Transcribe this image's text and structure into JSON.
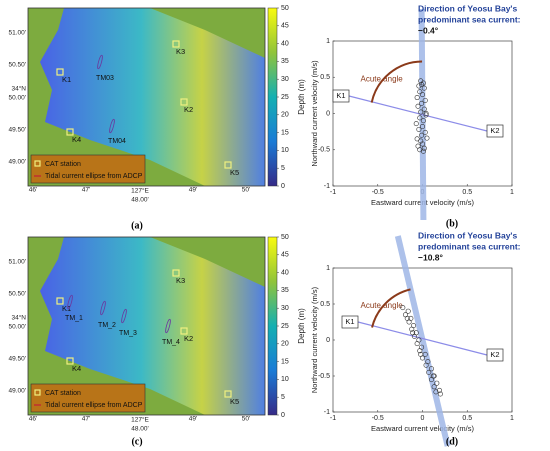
{
  "maps": [
    {
      "caption": "(a)",
      "stations": [
        "K1",
        "K2",
        "K3",
        "K4",
        "K5"
      ],
      "ellipses": [
        "TM03",
        "TM04"
      ],
      "legend": [
        "CAT station",
        "Tidal current ellipse from ADCP"
      ],
      "x_labels": [
        "46'",
        "47'",
        "48.00'",
        "49'",
        "50'"
      ],
      "x_degree": "127°E",
      "y_labels": [
        "51.00'",
        "50.50'",
        "50.00'",
        "49.50'",
        "49.00'"
      ],
      "y_degree": "34°N",
      "colorbar": {
        "label": "Depth (m)",
        "lim": [
          0,
          50
        ],
        "ticks": [
          0,
          5,
          10,
          15,
          20,
          25,
          30,
          35,
          40,
          45,
          50
        ]
      }
    },
    {
      "caption": "(c)",
      "stations": [
        "K1",
        "K2",
        "K3",
        "K4",
        "K5"
      ],
      "ellipses": [
        "TM_1",
        "TM_2",
        "TM_3",
        "TM_4"
      ],
      "legend": [
        "CAT station",
        "Tidal current ellipse from ADCP"
      ],
      "x_labels": [
        "46'",
        "47'",
        "48.00'",
        "49'",
        "50'"
      ],
      "x_degree": "127°E",
      "y_labels": [
        "51.00'",
        "50.50'",
        "50.00'",
        "49.50'",
        "49.00'"
      ],
      "y_degree": "34°N",
      "colorbar": {
        "label": "Depth (m)",
        "lim": [
          0,
          50
        ],
        "ticks": [
          0,
          5,
          10,
          15,
          20,
          25,
          30,
          35,
          40,
          45,
          50
        ]
      }
    }
  ],
  "plots": [
    {
      "type": "scatter",
      "caption": "(b)",
      "title": [
        "Direction of Yeosu Bay's",
        "predominant sea current:"
      ],
      "angle": {
        "value": -0.4,
        "label": "−0.4°"
      },
      "annotation": "Acute angle",
      "endpoints": [
        "K1",
        "K2"
      ],
      "xlabel": "Eastward current velocity (m/s)",
      "ylabel": "Northward current velocity (m/s)",
      "xlim": [
        -1,
        1
      ],
      "ylim": [
        -1,
        1
      ],
      "xticks": [
        -1,
        -0.5,
        0,
        0.5,
        1
      ],
      "yticks": [
        -1,
        -0.5,
        0,
        0.5,
        1
      ],
      "x": [
        -0.02,
        0.01,
        -0.04,
        0.02,
        -0.03,
        0.0,
        -0.06,
        0.03,
        -0.01,
        -0.05,
        0.02,
        -0.02,
        0.04,
        -0.03,
        0.01,
        -0.07,
        0.0,
        -0.04,
        0.03,
        -0.01,
        0.05,
        -0.02,
        0.0,
        -0.05,
        0.02,
        -0.03,
        0.01,
        -0.06,
        0.04,
        -0.01
      ],
      "y": [
        0.45,
        0.42,
        0.38,
        0.35,
        0.3,
        0.26,
        0.22,
        0.18,
        0.14,
        0.1,
        0.06,
        0.02,
        -0.02,
        -0.06,
        -0.1,
        -0.14,
        -0.18,
        -0.22,
        -0.26,
        -0.3,
        -0.34,
        -0.38,
        -0.42,
        -0.45,
        -0.48,
        -0.5,
        -0.52,
        -0.35,
        0.0,
        0.4
      ]
    },
    {
      "type": "scatter",
      "caption": "(d)",
      "title": [
        "Direction of Yeosu Bay's",
        "predominant sea current:"
      ],
      "angle": {
        "value": -10.8,
        "label": "−10.8°"
      },
      "annotation": "Acute angle",
      "endpoints": [
        "K1",
        "K2"
      ],
      "xlabel": "Eastward current velocity (m/s)",
      "ylabel": "Northward current velocity (m/s)",
      "xlim": [
        -1,
        1
      ],
      "ylim": [
        -1,
        1
      ],
      "xticks": [
        -1,
        -0.5,
        0,
        0.5,
        1
      ],
      "yticks": [
        -1,
        -0.5,
        0,
        0.5,
        1
      ],
      "x": [
        -0.22,
        -0.16,
        -0.19,
        -0.13,
        -0.15,
        -0.1,
        -0.12,
        -0.07,
        -0.09,
        -0.04,
        -0.06,
        -0.01,
        -0.03,
        0.03,
        0.0,
        0.06,
        0.04,
        0.1,
        0.07,
        0.13,
        0.1,
        0.16,
        0.13,
        0.19,
        0.15,
        0.2,
        -0.02,
        -0.11,
        0.12,
        -0.17
      ],
      "y": [
        0.45,
        0.4,
        0.35,
        0.3,
        0.25,
        0.2,
        0.15,
        0.1,
        0.05,
        0.0,
        -0.05,
        -0.1,
        -0.15,
        -0.2,
        -0.25,
        -0.3,
        -0.35,
        -0.4,
        -0.45,
        -0.5,
        -0.55,
        -0.6,
        -0.65,
        -0.7,
        -0.72,
        -0.75,
        -0.2,
        0.1,
        -0.5,
        0.3
      ]
    }
  ]
}
